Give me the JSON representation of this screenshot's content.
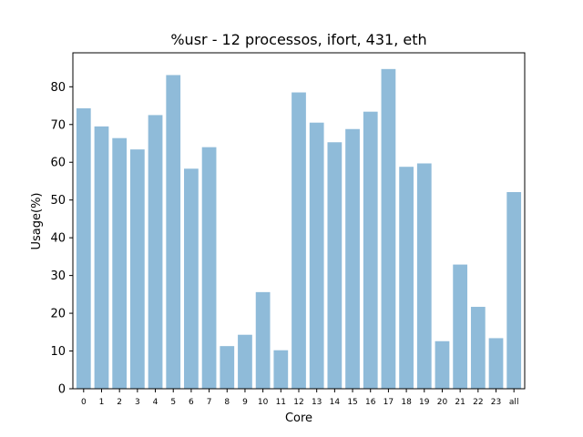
{
  "chart_data": {
    "type": "bar",
    "title": "%usr - 12 processos, ifort, 431, eth",
    "xlabel": "Core",
    "ylabel": "Usage(%)",
    "categories": [
      "0",
      "1",
      "2",
      "3",
      "4",
      "5",
      "6",
      "7",
      "8",
      "9",
      "10",
      "11",
      "12",
      "13",
      "14",
      "15",
      "16",
      "17",
      "18",
      "19",
      "20",
      "21",
      "22",
      "23",
      "all"
    ],
    "values": [
      74.3,
      69.5,
      66.4,
      63.4,
      72.5,
      83.1,
      58.3,
      64.0,
      11.3,
      14.3,
      25.6,
      10.2,
      78.5,
      70.5,
      65.3,
      68.8,
      73.4,
      84.7,
      58.8,
      59.7,
      12.6,
      32.9,
      21.7,
      13.4,
      52.1
    ],
    "yticks": [
      0,
      10,
      20,
      30,
      40,
      50,
      60,
      70,
      80
    ],
    "ylim": [
      0,
      89
    ],
    "bar_color": "#8fbbd9",
    "grid": false
  }
}
